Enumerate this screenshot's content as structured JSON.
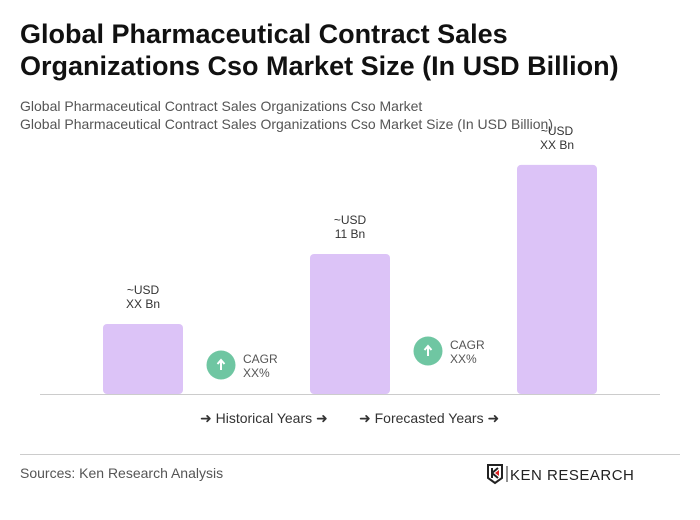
{
  "title": "Global Pharmaceutical Contract Sales Organizations Cso Market Size (In USD Billion)",
  "subtitle1": "Global Pharmaceutical Contract Sales Organizations Cso Market",
  "subtitle2": "Global Pharmaceutical Contract Sales Organizations Cso Market Size (In USD Billion)",
  "chart_data": {
    "type": "bar",
    "values": [
      5.5,
      11,
      18
    ],
    "data_labels": [
      [
        "~USD",
        "XX Bn"
      ],
      [
        "~USD",
        "11 Bn"
      ],
      [
        "~USD",
        "XX Bn"
      ]
    ],
    "bar_color": "#dcc3f7",
    "cagr": [
      {
        "line1": "CAGR",
        "line2": "XX%"
      },
      {
        "line1": "CAGR",
        "line2": "XX%"
      }
    ],
    "cagr_color": "#6fc6a2",
    "legend": [
      "Historical Years",
      "Forecasted Years"
    ]
  },
  "sources": "Sources: Ken Research Analysis",
  "logo_text": "KEN RESEARCH"
}
